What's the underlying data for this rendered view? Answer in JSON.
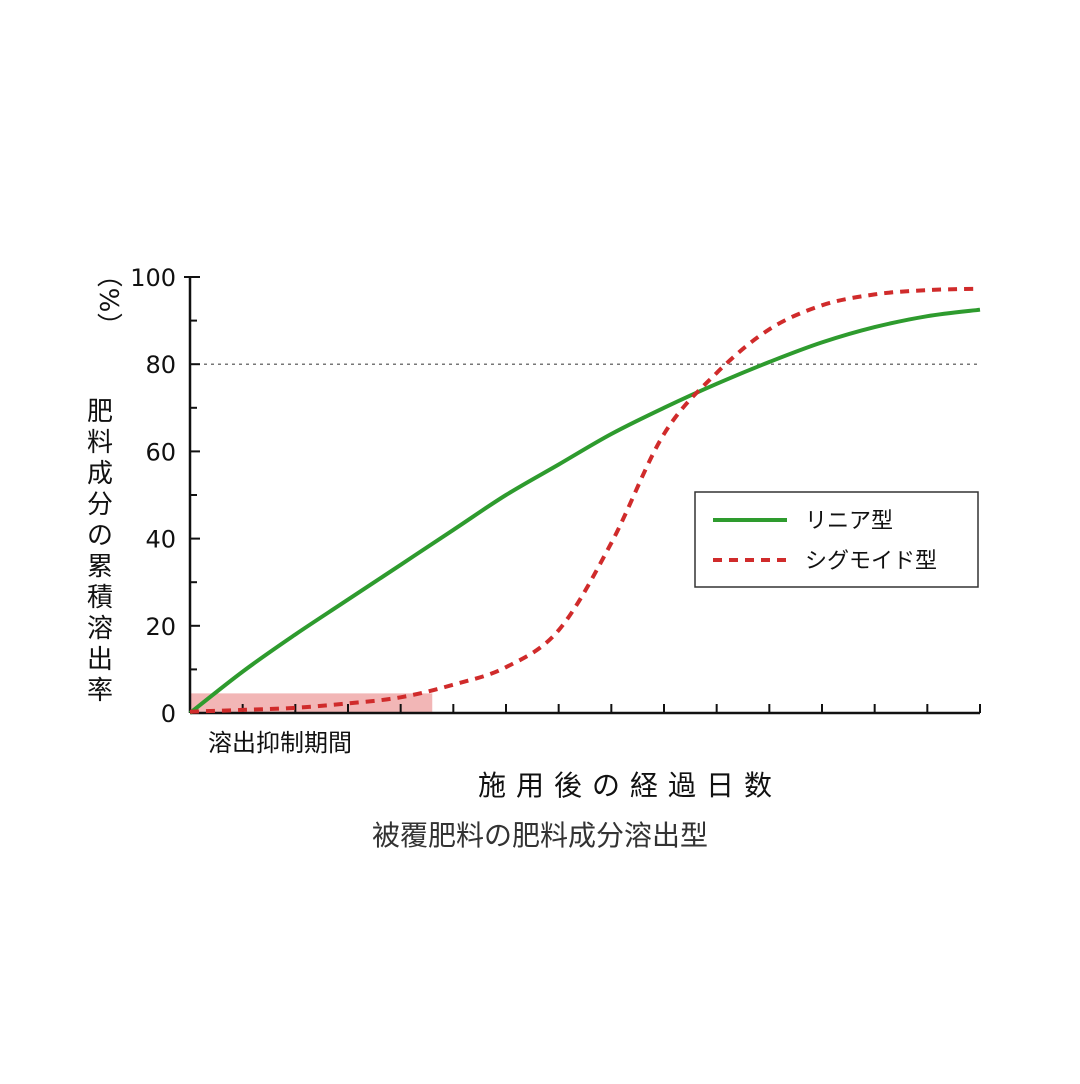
{
  "chart_data": {
    "type": "line",
    "ylabel": "肥料成分の累積溶出率",
    "ylabel_unit": "（%）",
    "xlabel": "施用後の経過日数",
    "caption": "被覆肥料の肥料成分溶出型",
    "ylim": [
      0,
      100
    ],
    "yticks": [
      "0",
      "20",
      "40",
      "60",
      "80",
      "100"
    ],
    "xlim": [
      0,
      15
    ],
    "reference_line": {
      "y": 80,
      "style": "dotted",
      "color": "#777777"
    },
    "suppression_period": {
      "label": "溶出抑制期間",
      "x_start": 0,
      "x_end": 4.6,
      "y_top": 4.5,
      "color": "#f2b6b6"
    },
    "legend": {
      "placement": "right-middle"
    },
    "series": [
      {
        "name": "リニア型",
        "color": "#2e9b2e",
        "style": "solid",
        "x": [
          0,
          1,
          2,
          3,
          4,
          5,
          6,
          7,
          8,
          9,
          10,
          11,
          12,
          13,
          14,
          15
        ],
        "y": [
          0,
          9.5,
          18,
          26,
          34,
          42,
          50,
          57,
          64,
          70,
          75.5,
          80.5,
          85,
          88.5,
          91,
          92.5
        ]
      },
      {
        "name": "シグモイド型",
        "color": "#d02b2b",
        "style": "dashed",
        "x": [
          0,
          1,
          2,
          3,
          4,
          5,
          6,
          7,
          8,
          9,
          10,
          11,
          12,
          13,
          14,
          15
        ],
        "y": [
          0.3,
          0.7,
          1.2,
          2.2,
          3.6,
          6.5,
          10.5,
          19,
          39,
          64,
          78,
          88,
          93.5,
          96,
          97,
          97.3
        ]
      }
    ]
  }
}
